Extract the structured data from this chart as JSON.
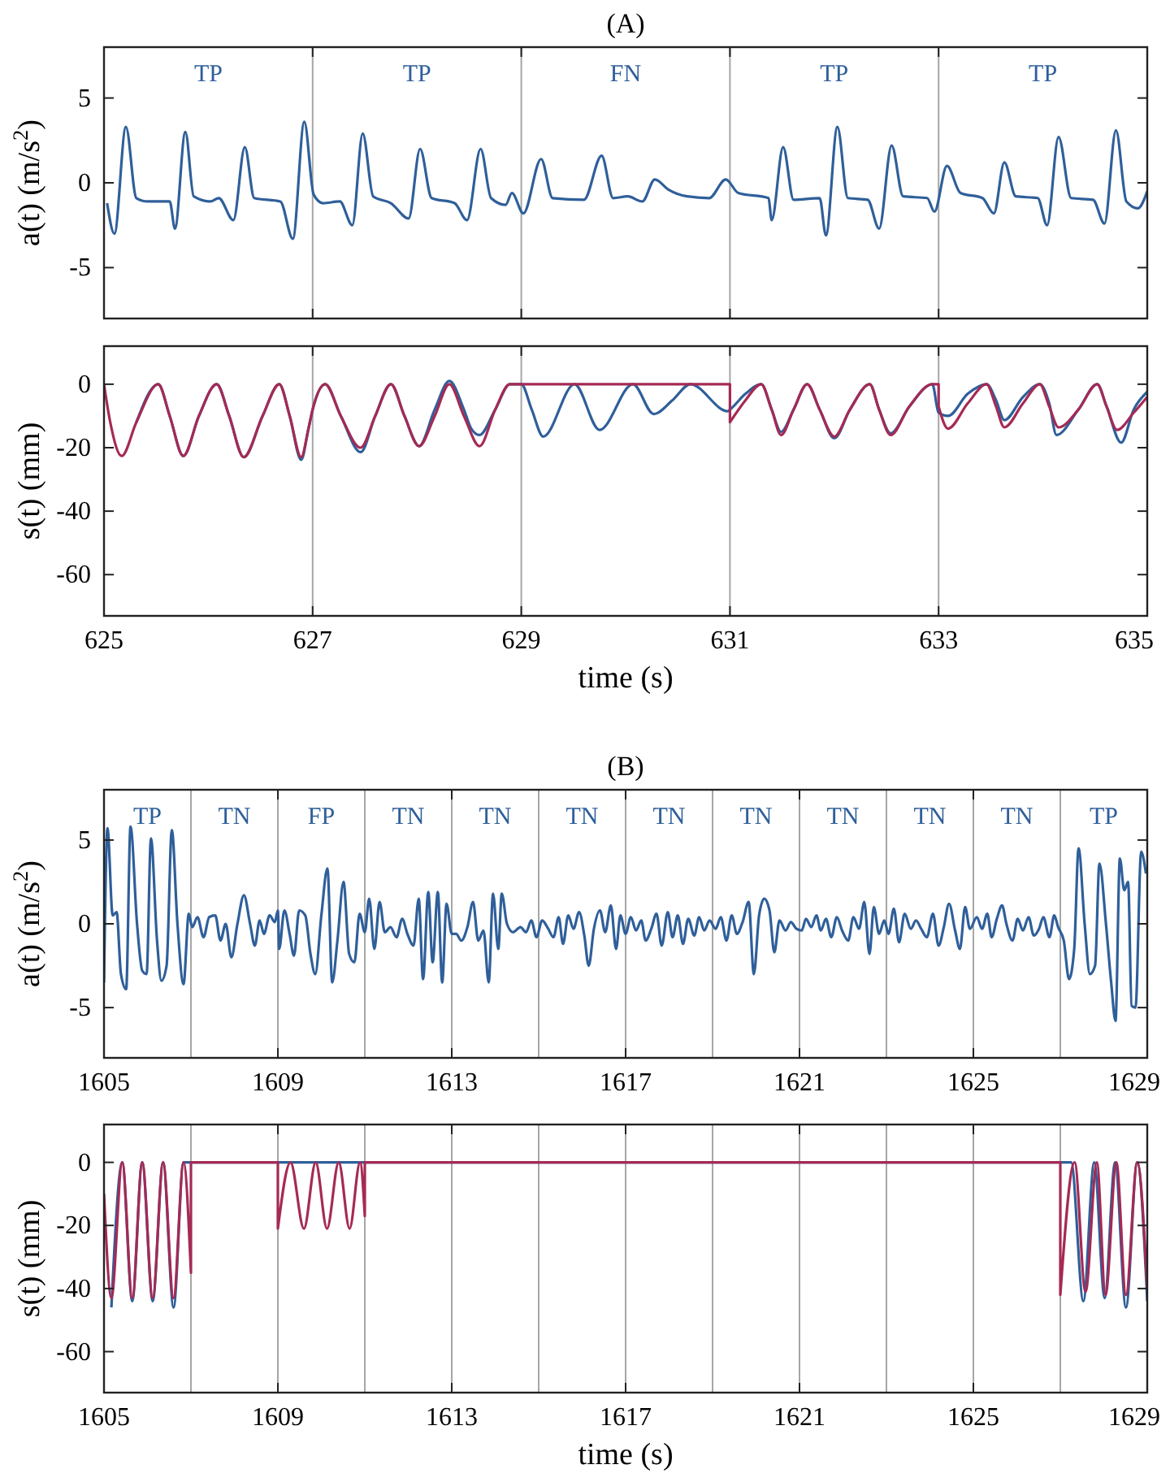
{
  "chart_data": [
    {
      "type": "line",
      "title": "(A)",
      "ylabel": "a(t) (m/s$^{2}$)",
      "xlim": [
        625,
        635
      ],
      "xticks": [
        625,
        627,
        629,
        631,
        633,
        635
      ],
      "ylim": [
        -8,
        8
      ],
      "yticks": [
        -5,
        0,
        5
      ],
      "tick_labels": "y",
      "annotations": [
        "TP",
        "TP",
        "FN",
        "TP",
        "TP"
      ],
      "ref_lines": [
        {
          "axis": "x",
          "value": 627,
          "color": "#a6a6a6"
        },
        {
          "axis": "x",
          "value": 629,
          "color": "#a6a6a6"
        },
        {
          "axis": "x",
          "value": 631,
          "color": "#a6a6a6"
        },
        {
          "axis": "x",
          "value": 633,
          "color": "#a6a6a6"
        }
      ],
      "series": [
        {
          "color": "#2f5f9a",
          "x": [
            625.03,
            625.1,
            625.21,
            625.31,
            625.42,
            625.63,
            625.68,
            625.78,
            625.86,
            626.02,
            626.1,
            626.24,
            626.35,
            626.44,
            626.69,
            626.81,
            626.92,
            627.01,
            627.1,
            627.26,
            627.38,
            627.48,
            627.58,
            627.75,
            627.92,
            628.03,
            628.14,
            628.36,
            628.48,
            628.61,
            628.71,
            628.85,
            628.91,
            629.02,
            629.19,
            629.3,
            629.6,
            629.77,
            629.88,
            630.02,
            630.16,
            630.28,
            630.41,
            630.59,
            630.8,
            630.96,
            631.08,
            631.37,
            631.4,
            631.51,
            631.61,
            631.86,
            631.92,
            632.03,
            632.13,
            632.32,
            632.43,
            632.55,
            632.66,
            632.89,
            632.96,
            633.08,
            633.21,
            633.42,
            633.53,
            633.63,
            633.74,
            633.95,
            634.04,
            634.15,
            634.27,
            634.48,
            634.59,
            634.7,
            634.8,
            634.91,
            635.0
          ],
          "values": [
            -1.2,
            -3.0,
            3.3,
            -0.9,
            -1.1,
            -1.1,
            -2.7,
            3.0,
            -0.8,
            -1.1,
            -0.9,
            -2.2,
            2.1,
            -0.9,
            -1.1,
            -3.3,
            3.6,
            -0.7,
            -1.2,
            -1.1,
            -2.5,
            2.9,
            -0.8,
            -1.2,
            -2.1,
            2.0,
            -0.9,
            -1.2,
            -2.2,
            2.0,
            -0.9,
            -1.3,
            -0.6,
            -1.8,
            1.4,
            -0.9,
            -1.0,
            1.6,
            -0.9,
            -0.8,
            -1.1,
            0.2,
            -0.4,
            -0.8,
            -0.9,
            0.2,
            -0.6,
            -0.9,
            -2.2,
            2.1,
            -1.0,
            -0.9,
            -3.1,
            3.3,
            -0.9,
            -1.0,
            -2.7,
            2.2,
            -0.8,
            -0.9,
            -1.7,
            1.0,
            -0.6,
            -0.9,
            -1.8,
            1.2,
            -0.8,
            -0.9,
            -2.5,
            2.7,
            -0.9,
            -1.0,
            -2.4,
            3.1,
            -1.1,
            -1.5,
            -0.5
          ]
        }
      ]
    },
    {
      "type": "line",
      "ylabel": "s(t) (mm)",
      "xlabel": "time (s)",
      "xlim": [
        625,
        635
      ],
      "xticks": [
        625,
        627,
        629,
        631,
        633,
        635
      ],
      "ylim": [
        -73,
        12
      ],
      "yticks": [
        -60,
        -40,
        -20,
        0
      ],
      "ref_lines": [
        {
          "axis": "x",
          "value": 627,
          "color": "#a6a6a6"
        },
        {
          "axis": "x",
          "value": 629,
          "color": "#a6a6a6"
        },
        {
          "axis": "x",
          "value": 631,
          "color": "#a6a6a6"
        },
        {
          "axis": "x",
          "value": 633,
          "color": "#a6a6a6"
        }
      ],
      "series": [
        {
          "color": "#2f5f9a",
          "x": [
            625.31,
            625.52,
            625.63,
            625.76,
            625.91,
            626.08,
            626.2,
            626.34,
            626.52,
            626.68,
            626.78,
            626.89,
            626.96,
            627.0,
            627.12,
            627.27,
            627.46,
            627.6,
            627.75,
            627.88,
            628.02,
            628.17,
            628.31,
            628.45,
            628.52,
            628.6,
            628.75,
            628.89,
            629.0,
            629.1,
            629.21,
            629.51,
            629.75,
            630.07,
            630.27,
            630.45,
            630.62,
            630.98,
            631.0,
            631.15,
            631.3,
            631.4,
            631.49,
            631.61,
            631.74,
            631.86,
            632.0,
            632.15,
            632.34,
            632.43,
            632.54,
            632.72,
            632.94,
            633.0,
            633.09,
            633.28,
            633.46,
            633.55,
            633.63,
            633.81,
            633.97,
            634.06,
            634.13,
            634.34,
            634.52,
            634.61,
            634.75,
            634.87,
            635.0
          ],
          "values": [
            -12,
            0,
            -10,
            -22.6,
            -10,
            0,
            -10,
            -23,
            -10,
            0,
            -10,
            -23.8,
            -14,
            -8,
            0,
            -10,
            -21.4,
            -10,
            0,
            -10,
            -19.5,
            -8,
            1,
            -8,
            -14,
            -16,
            -8,
            0,
            0,
            -8,
            -16.5,
            0,
            -14.4,
            0,
            -9.4,
            -5,
            0,
            -8.5,
            -8,
            -3,
            0,
            -8,
            -15,
            -8,
            0,
            -8,
            -17,
            -8,
            0,
            -8,
            -15.5,
            -7,
            0,
            -9,
            -10,
            -3,
            0,
            -5,
            -11.3,
            -4,
            0,
            -6,
            -16,
            -8,
            0,
            -7,
            -18.4,
            -8,
            -2.4
          ]
        },
        {
          "color": "#a52a55",
          "x": [
            625,
            625.06,
            625.17,
            625.31,
            625.52,
            625.63,
            625.76,
            625.91,
            626.08,
            626.2,
            626.34,
            626.52,
            626.68,
            626.78,
            626.89,
            626.96,
            627.0,
            627.12,
            627.27,
            627.46,
            627.6,
            627.75,
            627.88,
            628.02,
            628.17,
            628.31,
            628.45,
            628.6,
            628.75,
            628.89,
            629.0,
            631.0,
            631.0,
            631.15,
            631.3,
            631.4,
            631.49,
            631.61,
            631.74,
            631.86,
            632.0,
            632.15,
            632.34,
            632.43,
            632.54,
            632.72,
            632.94,
            633.0,
            633.0,
            633.09,
            633.28,
            633.46,
            633.55,
            633.63,
            633.81,
            633.97,
            634.06,
            634.15,
            634.34,
            634.52,
            634.61,
            634.71,
            634.87,
            635.0
          ],
          "values": [
            0,
            -12,
            -22.6,
            -12,
            0,
            -10,
            -22.6,
            -10,
            0,
            -10,
            -23,
            -10,
            0,
            -10,
            -23,
            -14,
            -8,
            0,
            -10,
            -20,
            -10,
            0,
            -10,
            -19.5,
            -10,
            0,
            -10,
            -19.5,
            -8,
            0,
            0,
            0,
            -12,
            -5,
            0,
            -8,
            -16,
            -8,
            0,
            -8,
            -16.5,
            -8,
            0,
            -8,
            -16,
            -7,
            0,
            0,
            -7,
            -14,
            -6,
            0,
            -7,
            -13.6,
            -6,
            0,
            -7,
            -13.6,
            -8,
            0,
            -7,
            -14.4,
            -9,
            -4
          ]
        }
      ]
    },
    {
      "type": "line",
      "title": "(B)",
      "ylabel": "a(t) (m/s$^{2}$)",
      "xlim": [
        1605,
        1629
      ],
      "xticks": [
        1605,
        1609,
        1613,
        1617,
        1621,
        1625,
        1629
      ],
      "ylim": [
        -8,
        8
      ],
      "yticks": [
        -5,
        0,
        5
      ],
      "annotations": [
        "TP",
        "TN",
        "FP",
        "TN",
        "TN",
        "TN",
        "TN",
        "TN",
        "TN",
        "TN",
        "TN",
        "TP"
      ],
      "ref_lines": [
        {
          "axis": "x",
          "value": 1607,
          "color": "#a6a6a6"
        },
        {
          "axis": "x",
          "value": 1609,
          "color": "#a6a6a6"
        },
        {
          "axis": "x",
          "value": 1611,
          "color": "#a6a6a6"
        },
        {
          "axis": "x",
          "value": 1613,
          "color": "#a6a6a6"
        },
        {
          "axis": "x",
          "value": 1615,
          "color": "#a6a6a6"
        },
        {
          "axis": "x",
          "value": 1617,
          "color": "#a6a6a6"
        },
        {
          "axis": "x",
          "value": 1619,
          "color": "#a6a6a6"
        },
        {
          "axis": "x",
          "value": 1621,
          "color": "#a6a6a6"
        },
        {
          "axis": "x",
          "value": 1623,
          "color": "#a6a6a6"
        },
        {
          "axis": "x",
          "value": 1625,
          "color": "#a6a6a6"
        },
        {
          "axis": "x",
          "value": 1627,
          "color": "#a6a6a6"
        }
      ],
      "series": [
        {
          "color": "#2f5f9a",
          "x": [
            1605.0,
            1605.08,
            1605.2,
            1605.29,
            1605.39,
            1605.51,
            1605.61,
            1605.76,
            1605.88,
            1605.98,
            1606.08,
            1606.22,
            1606.32,
            1606.44,
            1606.56,
            1606.69,
            1606.83,
            1606.95,
            1607.03,
            1607.15,
            1607.29,
            1607.42,
            1607.56,
            1607.68,
            1607.8,
            1607.93,
            1608.07,
            1608.22,
            1608.36,
            1608.47,
            1608.58,
            1608.68,
            1608.81,
            1608.93,
            1609.0,
            1609.03,
            1609.15,
            1609.27,
            1609.37,
            1609.49,
            1609.63,
            1609.75,
            1609.86,
            1610.0,
            1610.14,
            1610.25,
            1610.37,
            1610.51,
            1610.64,
            1610.76,
            1610.88,
            1611.0,
            1611.1,
            1611.22,
            1611.34,
            1611.46,
            1611.59,
            1611.73,
            1611.86,
            1611.98,
            1612.12,
            1612.24,
            1612.34,
            1612.46,
            1612.56,
            1612.68,
            1612.78,
            1612.88,
            1613.0,
            1613.1,
            1613.22,
            1613.36,
            1613.49,
            1613.61,
            1613.73,
            1613.85,
            1613.95,
            1614.07,
            1614.15,
            1614.27,
            1614.41,
            1614.58,
            1614.71,
            1614.83,
            1614.95,
            1615.08,
            1615.22,
            1615.34,
            1615.46,
            1615.56,
            1615.68,
            1615.8,
            1615.93,
            1616.05,
            1616.15,
            1616.27,
            1616.41,
            1616.53,
            1616.66,
            1616.78,
            1616.88,
            1617.0,
            1617.12,
            1617.24,
            1617.36,
            1617.46,
            1617.59,
            1617.71,
            1617.83,
            1617.97,
            1618.08,
            1618.2,
            1618.32,
            1618.44,
            1618.58,
            1618.69,
            1618.81,
            1618.93,
            1619.07,
            1619.19,
            1619.32,
            1619.44,
            1619.56,
            1619.69,
            1619.83,
            1619.95,
            1620.07,
            1620.19,
            1620.31,
            1620.42,
            1620.54,
            1620.68,
            1620.8,
            1620.93,
            1621.05,
            1621.15,
            1621.27,
            1621.39,
            1621.49,
            1621.61,
            1621.73,
            1621.86,
            1621.98,
            1622.12,
            1622.24,
            1622.37,
            1622.49,
            1622.61,
            1622.71,
            1622.83,
            1622.95,
            1623.05,
            1623.17,
            1623.29,
            1623.42,
            1623.56,
            1623.68,
            1623.8,
            1623.93,
            1624.07,
            1624.2,
            1624.32,
            1624.44,
            1624.58,
            1624.69,
            1624.81,
            1624.92,
            1625.08,
            1625.2,
            1625.32,
            1625.42,
            1625.54,
            1625.66,
            1625.76,
            1625.9,
            1626.02,
            1626.14,
            1626.27,
            1626.39,
            1626.51,
            1626.61,
            1626.75,
            1626.86,
            1626.95,
            1627.08,
            1627.2,
            1627.32,
            1627.42,
            1627.56,
            1627.68,
            1627.8,
            1627.9,
            1628.05,
            1628.17,
            1628.27,
            1628.37,
            1628.47,
            1628.56,
            1628.64,
            1628.73,
            1628.86,
            1628.97
          ],
          "values": [
            -3.5,
            5.7,
            0.5,
            0.7,
            -3.0,
            -3.9,
            5.8,
            0,
            -2.8,
            -3.0,
            5.1,
            -1.0,
            -3.4,
            -2.5,
            5.6,
            0,
            -3.6,
            0.6,
            -0.2,
            0.4,
            -0.8,
            0.4,
            0.5,
            -1.0,
            0,
            -2.0,
            0,
            1.7,
            0,
            -1.3,
            0.2,
            -0.6,
            0.5,
            0.1,
            0.8,
            -1.5,
            0.8,
            -0.6,
            -1.9,
            0.8,
            0.5,
            -1.8,
            -3.0,
            0.5,
            3.3,
            -3.5,
            -1.0,
            2.5,
            -1.8,
            -2.3,
            0.6,
            -0.5,
            1.5,
            -1.5,
            1.3,
            -0.5,
            -0.2,
            -0.8,
            0.3,
            -0.6,
            -1.3,
            1.5,
            -3.3,
            1.9,
            -2.3,
            1.9,
            -3.5,
            1.2,
            -0.6,
            -0.6,
            -1.0,
            -0.2,
            1.3,
            -1.0,
            -0.4,
            -3.5,
            1.8,
            -1.5,
            1.8,
            0,
            -0.5,
            -0.2,
            -0.5,
            0.2,
            -0.8,
            0.2,
            -0.3,
            -0.8,
            0.4,
            -1.2,
            0.5,
            -0.3,
            0.7,
            -0.7,
            -2.5,
            -0.3,
            0.8,
            -0.5,
            1.1,
            -1.5,
            0.5,
            -0.6,
            0.4,
            -0.4,
            0.2,
            -1.0,
            -0.3,
            0.6,
            -1.3,
            0.7,
            -0.8,
            0.5,
            -1.2,
            0.3,
            -0.7,
            0.4,
            -0.4,
            0.2,
            -0.3,
            0.4,
            -1.0,
            0.5,
            -0.6,
            0.1,
            1.3,
            -3.0,
            0.5,
            1.5,
            0.8,
            -1.7,
            0.2,
            -0.4,
            0.1,
            -0.3,
            -0.4,
            0.3,
            -0.2,
            0.5,
            -0.4,
            0.3,
            -0.8,
            0.4,
            -0.4,
            -1.0,
            0.4,
            -0.3,
            1.3,
            -1.8,
            1.0,
            -0.6,
            0.2,
            -0.6,
            0.9,
            -1.1,
            0.6,
            -0.3,
            0.2,
            -0.3,
            -0.8,
            0.6,
            -1.3,
            -0.2,
            1.2,
            -0.4,
            -1.5,
            1.0,
            -0.3,
            0.4,
            -0.3,
            0.6,
            -0.8,
            0.3,
            1.1,
            0,
            -1.0,
            0.3,
            -0.4,
            0.4,
            -0.7,
            -0.3,
            0.4,
            -0.8,
            0.5,
            -0.2,
            -1.0,
            -3.3,
            -1.5,
            4.5,
            0,
            -3.0,
            -2.5,
            3.6,
            0,
            -3.5,
            -5.8,
            3.9,
            2.0,
            2.5,
            -4.9,
            -5.0,
            4.3,
            3.0
          ]
        }
      ]
    },
    {
      "type": "line",
      "ylabel": "s(t) (mm)",
      "xlabel": "time (s)",
      "xlim": [
        1605,
        1629
      ],
      "xticks": [
        1605,
        1609,
        1613,
        1617,
        1621,
        1625,
        1629
      ],
      "ylim": [
        -73,
        12
      ],
      "yticks": [
        -60,
        -40,
        -20,
        0
      ],
      "ref_lines": [
        {
          "axis": "x",
          "value": 1607,
          "color": "#a6a6a6"
        },
        {
          "axis": "x",
          "value": 1609,
          "color": "#a6a6a6"
        },
        {
          "axis": "x",
          "value": 1611,
          "color": "#a6a6a6"
        },
        {
          "axis": "x",
          "value": 1613,
          "color": "#a6a6a6"
        },
        {
          "axis": "x",
          "value": 1615,
          "color": "#a6a6a6"
        },
        {
          "axis": "x",
          "value": 1617,
          "color": "#a6a6a6"
        },
        {
          "axis": "x",
          "value": 1619,
          "color": "#a6a6a6"
        },
        {
          "axis": "x",
          "value": 1621,
          "color": "#a6a6a6"
        },
        {
          "axis": "x",
          "value": 1623,
          "color": "#a6a6a6"
        },
        {
          "axis": "x",
          "value": 1625,
          "color": "#a6a6a6"
        },
        {
          "axis": "x",
          "value": 1627,
          "color": "#a6a6a6"
        }
      ],
      "series": [
        {
          "color": "#2f5f9a",
          "x": [
            1605.17,
            1605.42,
            1605.65,
            1605.88,
            1606.12,
            1606.36,
            1606.6,
            1606.83,
            1607,
            1627.25,
            1627.53,
            1627.78,
            1628.02,
            1628.26,
            1628.51,
            1628.77,
            1629
          ],
          "values": [
            -46,
            0,
            -44,
            0,
            -44,
            0,
            -46,
            0,
            0,
            0,
            -44,
            0,
            -43,
            0,
            -46,
            0,
            -44
          ]
        },
        {
          "color": "#a52a55",
          "x": [
            1605,
            1605.17,
            1605.42,
            1605.65,
            1605.88,
            1606.12,
            1606.36,
            1606.6,
            1606.83,
            1607,
            1607,
            1609,
            1609,
            1609.29,
            1609.6,
            1609.87,
            1610.13,
            1610.4,
            1610.65,
            1610.89,
            1611,
            1611,
            1627,
            1627,
            1627.33,
            1627.58,
            1627.84,
            1628.04,
            1628.29,
            1628.51,
            1628.77,
            1629
          ],
          "values": [
            -10,
            -43,
            0,
            -43,
            0,
            -43,
            0,
            -43,
            0,
            -35,
            0,
            0,
            -21,
            0,
            -21,
            0,
            -21,
            0,
            -21,
            0,
            -17,
            0,
            0,
            -42,
            0,
            -41,
            0,
            -42,
            0,
            -42,
            0,
            -40
          ]
        }
      ]
    }
  ]
}
